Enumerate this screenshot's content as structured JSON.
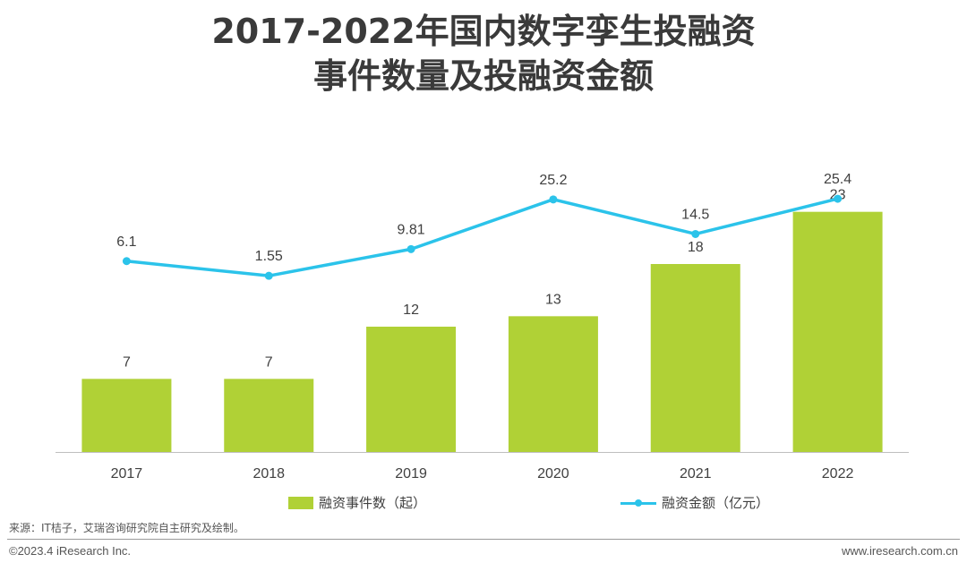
{
  "title": {
    "line1": "2017-2022年国内数字孪生投融资",
    "line2": "事件数量及投融资金额"
  },
  "chart_data": {
    "type": "bar+line",
    "categories": [
      "2017",
      "2018",
      "2019",
      "2020",
      "2021",
      "2022"
    ],
    "series": [
      {
        "name": "融资事件数（起）",
        "type": "bar",
        "values": [
          7,
          7,
          12,
          13,
          18,
          23
        ],
        "labels": [
          "7",
          "7",
          "12",
          "13",
          "18",
          "23"
        ],
        "color": "#b0d136"
      },
      {
        "name": "融资金额（亿元）",
        "type": "line",
        "values": [
          6.1,
          1.55,
          9.81,
          25.2,
          14.5,
          25.4
        ],
        "labels": [
          "6.1",
          "1.55",
          "9.81",
          "25.2",
          "14.5",
          "25.4"
        ],
        "color": "#2bc3ea"
      }
    ],
    "bar_ylim": [
      0,
      30
    ],
    "line_ylim": [
      -53,
      44
    ],
    "grid": false,
    "legend_position": "bottom"
  },
  "legend": {
    "bar_label": "融资事件数（起）",
    "line_label": "融资金额（亿元）"
  },
  "footer": {
    "source": "来源：IT桔子，艾瑞咨询研究院自主研究及绘制。",
    "copyright": "©2023.4 iResearch Inc.",
    "website": "www.iresearch.com.cn"
  }
}
